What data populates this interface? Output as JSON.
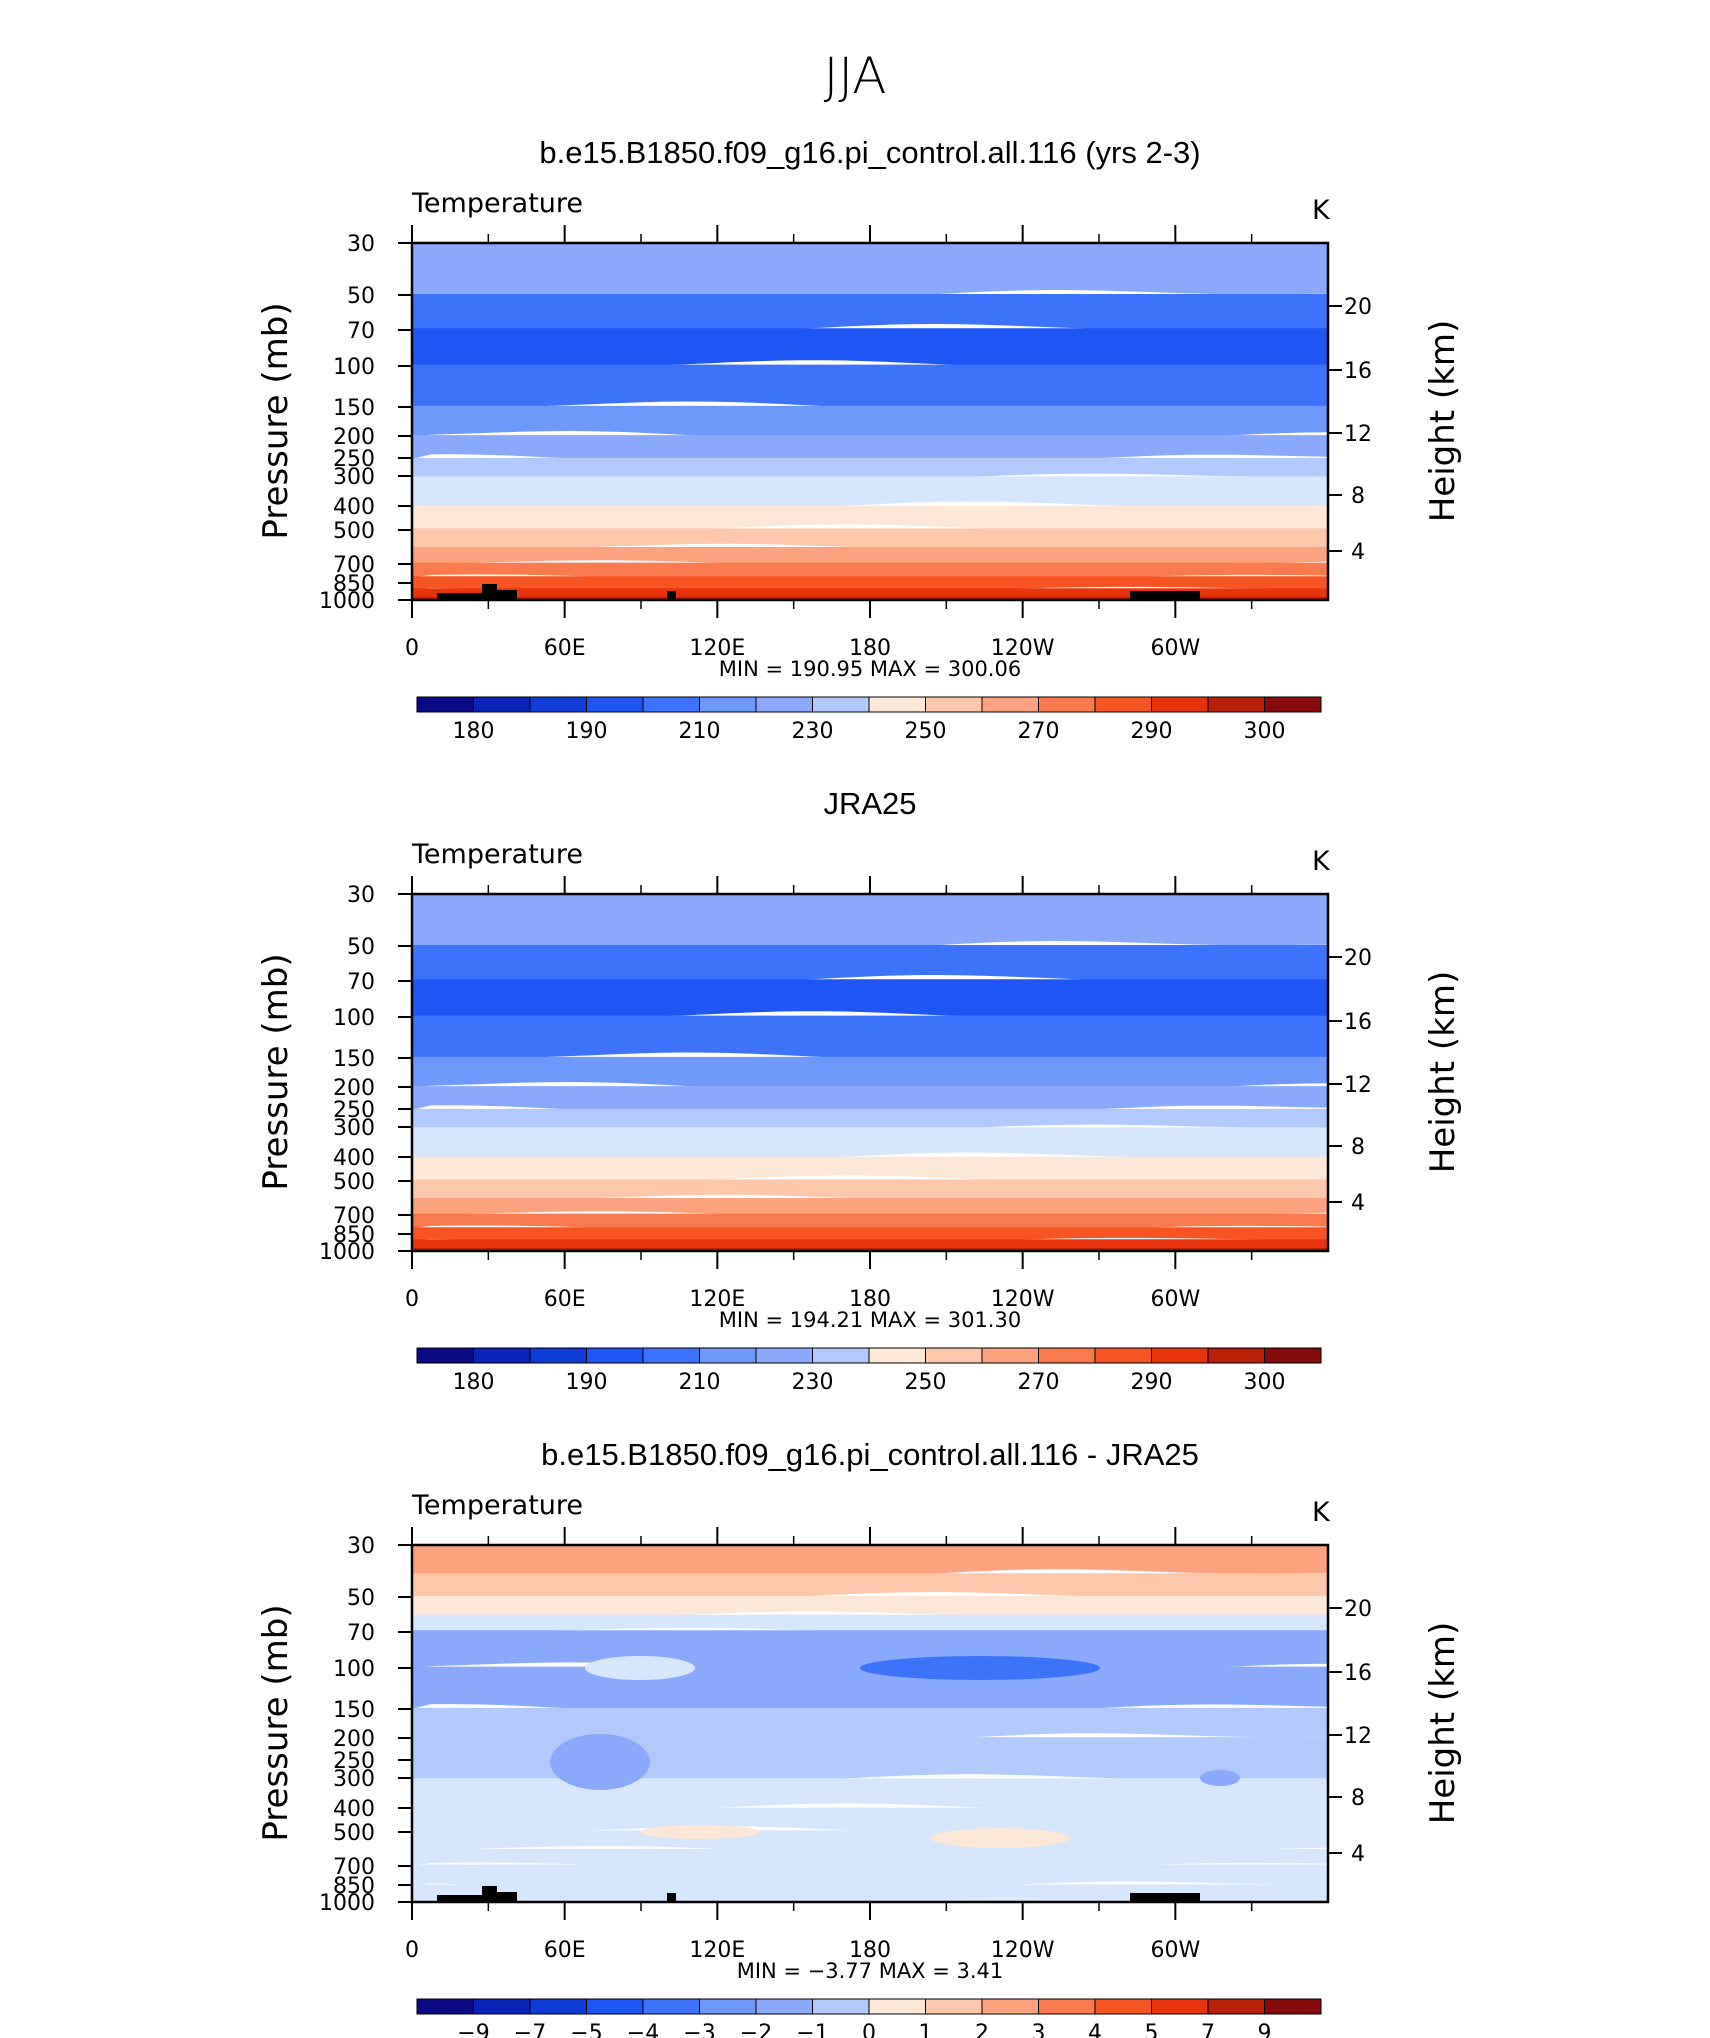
{
  "figure": {
    "season": "JJA",
    "colors": {
      "palette": [
        "#0a0a85",
        "#0a24ba",
        "#0d3dd6",
        "#1f55f2",
        "#3d73fa",
        "#6e98fa",
        "#8aa9fb",
        "#b2c9fc",
        "#d6e6fc",
        "#fde7d6",
        "#fdc7ab",
        "#fba27e",
        "#f97a4e",
        "#f75424",
        "#e8340c",
        "#b82008",
        "#850a0a"
      ],
      "land": "#000000"
    }
  },
  "chart_data": [
    {
      "type": "contour",
      "title": "b.e15.B1850.f09_g16.pi_control.all.116 (yrs 2-3)",
      "variable": "Temperature",
      "units": "K",
      "ylabel": "Pressure (mb)",
      "ylabel_right": "Height (km)",
      "x_ticks": [
        "0",
        "60E",
        "120E",
        "180",
        "120W",
        "60W"
      ],
      "y_ticks": [
        "30",
        "50",
        "70",
        "100",
        "150",
        "200",
        "250",
        "300",
        "400",
        "500",
        "700",
        "850",
        "1000"
      ],
      "y_ticks_right": [
        "20",
        "16",
        "12",
        "8",
        "4"
      ],
      "minmax_text": "MIN  =  190.95   MAX  =  300.06",
      "min": 190.95,
      "max": 300.06,
      "contour_levels": [
        180,
        185,
        190,
        200,
        210,
        220,
        230,
        240,
        250,
        260,
        270,
        280,
        290,
        295,
        300
      ],
      "colorbar_labels": [
        "180",
        "190",
        "210",
        "230",
        "250",
        "270",
        "290",
        "300"
      ],
      "band_colors": [
        6,
        4,
        3,
        4,
        5,
        6,
        7,
        8,
        9,
        10,
        11,
        12,
        13,
        14,
        15
      ],
      "band_level_mb": [
        50,
        70,
        100,
        150,
        200,
        250,
        300,
        400,
        500,
        600,
        700,
        800,
        900,
        1000
      ],
      "show_land": true
    },
    {
      "type": "contour",
      "title": "JRA25",
      "variable": "Temperature",
      "units": "K",
      "ylabel": "Pressure (mb)",
      "ylabel_right": "Height (km)",
      "x_ticks": [
        "0",
        "60E",
        "120E",
        "180",
        "120W",
        "60W"
      ],
      "y_ticks": [
        "30",
        "50",
        "70",
        "100",
        "150",
        "200",
        "250",
        "300",
        "400",
        "500",
        "700",
        "850",
        "1000"
      ],
      "y_ticks_right": [
        "20",
        "16",
        "12",
        "8",
        "4"
      ],
      "minmax_text": "MIN  =  194.21   MAX  =  301.30",
      "min": 194.21,
      "max": 301.3,
      "contour_levels": [
        180,
        185,
        190,
        200,
        210,
        220,
        230,
        240,
        250,
        260,
        270,
        280,
        290,
        295,
        300
      ],
      "colorbar_labels": [
        "180",
        "190",
        "210",
        "230",
        "250",
        "270",
        "290",
        "300"
      ],
      "band_colors": [
        6,
        4,
        3,
        4,
        5,
        6,
        7,
        8,
        9,
        10,
        11,
        12,
        13,
        14,
        15
      ],
      "band_level_mb": [
        50,
        70,
        100,
        150,
        200,
        250,
        300,
        400,
        500,
        600,
        700,
        800,
        900,
        1000
      ],
      "show_land": false
    },
    {
      "type": "contour",
      "title": "b.e15.B1850.f09_g16.pi_control.all.116 - JRA25",
      "variable": "Temperature",
      "units": "K",
      "ylabel": "Pressure (mb)",
      "ylabel_right": "Height (km)",
      "x_ticks": [
        "0",
        "60E",
        "120E",
        "180",
        "120W",
        "60W"
      ],
      "y_ticks": [
        "30",
        "50",
        "70",
        "100",
        "150",
        "200",
        "250",
        "300",
        "400",
        "500",
        "700",
        "850",
        "1000"
      ],
      "y_ticks_right": [
        "20",
        "16",
        "12",
        "8",
        "4"
      ],
      "minmax_text": "MIN  =   −3.77   MAX  =    3.41",
      "min": -3.77,
      "max": 3.41,
      "contour_levels": [
        -9,
        -7,
        -5,
        -4,
        -3,
        -2,
        -1,
        0,
        1,
        2,
        3,
        4,
        5,
        7,
        9
      ],
      "colorbar_labels": [
        "−9",
        "−7",
        "−5",
        "−4",
        "−3",
        "−2",
        "−1",
        "0",
        "1",
        "2",
        "3",
        "4",
        "5",
        "7",
        "9"
      ],
      "band_colors": [
        11,
        10,
        9,
        8,
        6,
        6,
        7,
        7,
        8,
        8,
        8,
        8,
        8,
        8
      ],
      "band_level_mb": [
        40,
        50,
        60,
        70,
        100,
        150,
        200,
        300,
        400,
        500,
        600,
        700,
        850,
        1000
      ],
      "show_land": true
    }
  ]
}
